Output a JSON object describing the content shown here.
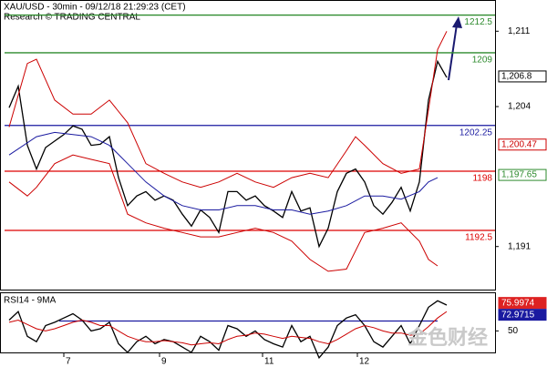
{
  "header": {
    "title": "XAU/USD - 30min - 09/12/18 21:29:23 (CET)",
    "subtitle": "Research © TRADING CENTRAL"
  },
  "watermark": "金色财经",
  "chart_data": [
    {
      "type": "line",
      "x": [
        1,
        2,
        3,
        4,
        5,
        6,
        7,
        8,
        9,
        10,
        11,
        12,
        13,
        14,
        15,
        16,
        17,
        18,
        19,
        20,
        21,
        22,
        23,
        24,
        25,
        26,
        27,
        28,
        29,
        30,
        31,
        32,
        33,
        34,
        35,
        36,
        37,
        38,
        39,
        40,
        41,
        42,
        43,
        44,
        45,
        46,
        47,
        48,
        49
      ],
      "xlim": [
        0,
        54.3
      ],
      "xticks": [
        {
          "value": 7.0,
          "label": "7"
        },
        {
          "value": 17.5,
          "label": "9"
        },
        {
          "value": 28.8,
          "label": "11"
        },
        {
          "value": 39.2,
          "label": "12"
        }
      ],
      "ylim": [
        1187,
        1213.9
      ],
      "yticks": [
        {
          "value": 1211,
          "label": "1,211"
        },
        {
          "value": 1204,
          "label": "1,204"
        },
        {
          "value": 1191,
          "label": "1,191"
        }
      ],
      "series": [
        {
          "color": "#000000",
          "values": [
            1203.9,
            1205.9,
            1200.4,
            1198.2,
            1200.2,
            1200.8,
            1201.4,
            1202.2,
            1201.9,
            1200.4,
            1200.5,
            1201.2,
            1197.4,
            1194.8,
            1195.7,
            1196.1,
            1195.3,
            1195.7,
            1195.3,
            1194.0,
            1192.9,
            1194.4,
            1193.7,
            1192.3,
            1196.1,
            1196.1,
            1195.3,
            1195.7,
            1194.8,
            1194.3,
            1193.7,
            1196.1,
            1194.3,
            1194.6,
            1191.0,
            1192.7,
            1196.1,
            1197.8,
            1198.2,
            1197.0,
            1194.8,
            1194.0,
            1195.1,
            1196.5,
            1194.3,
            1197.0,
            1204.6,
            1208.2,
            1206.7
          ]
        },
        {
          "color": "#cc0000",
          "x": [
            1,
            3,
            4,
            6,
            8,
            10,
            12,
            14,
            16,
            18,
            20,
            22,
            24,
            26,
            28,
            30,
            32,
            34,
            36,
            38,
            39,
            40,
            42,
            44,
            46,
            47,
            48,
            49
          ],
          "values": [
            1202.1,
            1208.0,
            1208.4,
            1204.6,
            1203.3,
            1203.3,
            1204.6,
            1202.5,
            1198.7,
            1197.8,
            1197.0,
            1196.5,
            1197.0,
            1197.8,
            1197.0,
            1196.5,
            1197.4,
            1197.8,
            1197.4,
            1199.9,
            1201.2,
            1200.4,
            1198.7,
            1197.8,
            1198.2,
            1203.7,
            1209.3,
            1211.0
          ]
        },
        {
          "color": "#cc0000",
          "x": [
            1,
            3,
            4,
            6,
            8,
            10,
            12,
            14,
            16,
            18,
            20,
            22,
            24,
            26,
            28,
            30,
            32,
            34,
            36,
            38,
            40,
            42,
            44,
            46,
            47,
            48
          ],
          "values": [
            1197.0,
            1195.7,
            1196.5,
            1198.7,
            1199.5,
            1199.1,
            1198.7,
            1194.0,
            1193.2,
            1192.7,
            1192.3,
            1191.9,
            1191.9,
            1192.3,
            1192.7,
            1192.3,
            1191.5,
            1189.8,
            1188.7,
            1188.9,
            1192.3,
            1192.7,
            1193.2,
            1191.5,
            1189.8,
            1189.2
          ]
        },
        {
          "color": "#1a1aa0",
          "x": [
            1,
            4,
            6,
            8,
            10,
            12,
            14,
            16,
            18,
            20,
            22,
            24,
            26,
            28,
            30,
            32,
            34,
            36,
            38,
            40,
            42,
            44,
            46,
            47,
            48
          ],
          "values": [
            1199.5,
            1201.2,
            1201.6,
            1201.4,
            1201.2,
            1200.4,
            1198.7,
            1197.0,
            1195.7,
            1194.8,
            1194.4,
            1194.4,
            1194.8,
            1194.8,
            1194.4,
            1194.4,
            1194.0,
            1194.3,
            1194.8,
            1195.7,
            1195.7,
            1195.4,
            1196.1,
            1197.0,
            1197.4
          ]
        }
      ],
      "levels": [
        {
          "value": 1212.5,
          "color": "#2e8b2e"
        },
        {
          "value": 1209,
          "color": "#2e8b2e"
        },
        {
          "value": 1202.25,
          "color": "#1a1aa0"
        },
        {
          "value": 1198,
          "color": "#dd0000"
        },
        {
          "value": 1192.5,
          "color": "#dd0000"
        }
      ],
      "markers": [
        {
          "value": 1206.8,
          "label": "1,206.8",
          "color": "#000000"
        },
        {
          "value": 1200.47,
          "label": "1,200.47",
          "color": "#cc0000"
        },
        {
          "value": 1197.65,
          "label": "1,197.65",
          "color": "#2e8b2e"
        }
      ]
    },
    {
      "type": "line",
      "title": "RSI14 - 9MA",
      "ylim": [
        30,
        85
      ],
      "yticks": [
        50
      ],
      "series": [
        {
          "color": "#000000",
          "values": [
            60,
            68,
            45,
            40,
            55,
            58,
            62,
            66,
            60,
            50,
            52,
            58,
            38,
            30,
            40,
            45,
            38,
            42,
            40,
            35,
            30,
            45,
            40,
            32,
            55,
            52,
            45,
            50,
            42,
            38,
            35,
            55,
            40,
            45,
            25,
            35,
            55,
            62,
            65,
            55,
            40,
            35,
            45,
            55,
            38,
            55,
            72,
            78,
            74
          ]
        },
        {
          "color": "#cc0000",
          "values": [
            58,
            60,
            56,
            52,
            50,
            52,
            55,
            58,
            60,
            58,
            55,
            55,
            50,
            45,
            42,
            40,
            40,
            41,
            40,
            39,
            37,
            38,
            39,
            38,
            42,
            45,
            46,
            48,
            47,
            45,
            43,
            45,
            44,
            43,
            40,
            38,
            42,
            47,
            52,
            55,
            53,
            50,
            48,
            48,
            46,
            47,
            54,
            62,
            68
          ]
        }
      ],
      "levels": [
        {
          "value": 59.2,
          "color": "#1a1aa0"
        }
      ],
      "markers": [
        {
          "value": 75.9974,
          "color": "#dd2222"
        },
        {
          "value": 72.9715,
          "color": "#1a1aa0"
        }
      ]
    }
  ]
}
